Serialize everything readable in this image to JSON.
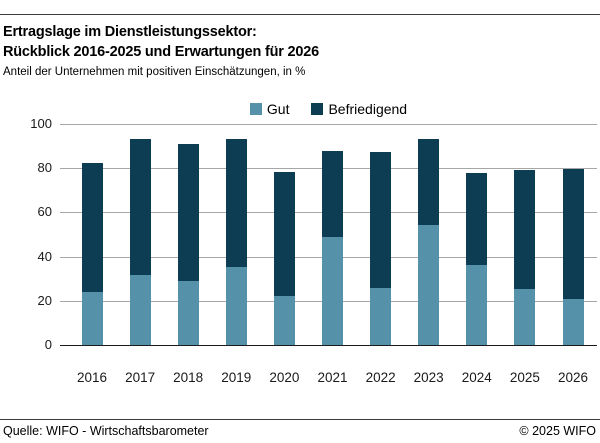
{
  "header": {
    "title_line1": "Ertragslage im Dienstleistungssektor:",
    "title_line2": "Rückblick 2016-2025 und Erwartungen für 2026",
    "subtitle": "Anteil der Unternehmen mit positiven Einschätzungen, in %"
  },
  "chart_data": {
    "type": "bar",
    "stacked": true,
    "title": "Ertragslage im Dienstleistungssektor: Rückblick 2016-2025 und Erwartungen für 2026",
    "subtitle": "Anteil der Unternehmen mit positiven Einschätzungen, in %",
    "categories": [
      "2016",
      "2017",
      "2018",
      "2019",
      "2020",
      "2021",
      "2022",
      "2023",
      "2024",
      "2025",
      "2026"
    ],
    "series": [
      {
        "name": "Gut",
        "color": "#5591A8",
        "values": [
          24,
          31.5,
          29,
          35.5,
          22,
          49,
          26,
          54.5,
          36,
          25.5,
          21
        ]
      },
      {
        "name": "Befriedigend",
        "color": "#0D3D53",
        "values": [
          58.5,
          61.5,
          62,
          57.5,
          56.5,
          39,
          61.5,
          38.5,
          42,
          53.5,
          58.5
        ]
      }
    ],
    "totals": [
      82.5,
      93,
      91,
      93,
      78.5,
      88,
      87.5,
      93,
      78,
      79,
      79.5
    ],
    "xlabel": "",
    "ylabel": "",
    "ylim": [
      0,
      100
    ],
    "yticks": [
      0,
      20,
      40,
      60,
      80,
      100
    ],
    "grid": true,
    "grid_color": "#A6A6A6",
    "legend_position": "top-center"
  },
  "footer": {
    "source": "Quelle: WIFO - Wirtschaftsbarometer",
    "copyright": "© 2025 WIFO"
  }
}
